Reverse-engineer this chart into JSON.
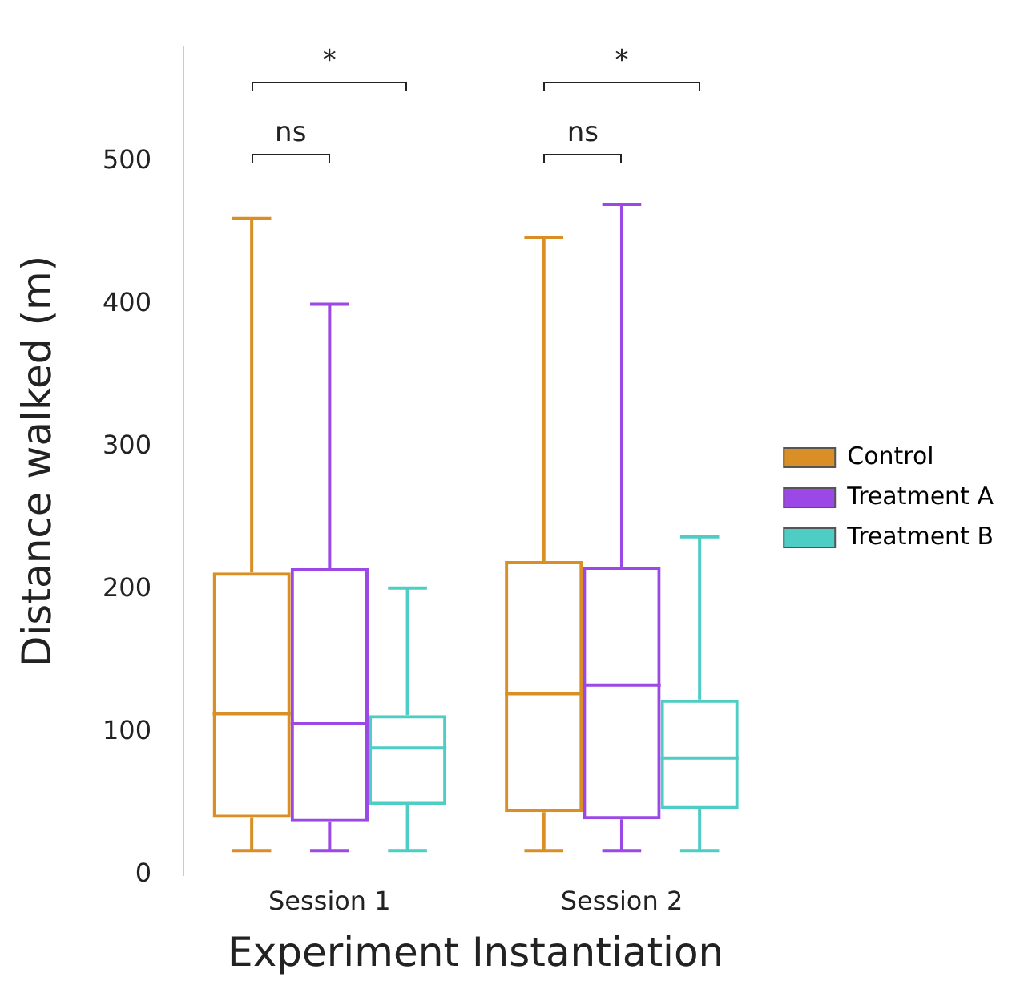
{
  "chart_data": {
    "type": "box",
    "xlabel": "Experiment Instantiation",
    "ylabel": "Distance walked (m)",
    "categories": [
      "Session 1",
      "Session 2"
    ],
    "ylim": [
      0,
      580
    ],
    "yticks": [
      0,
      100,
      200,
      300,
      400,
      500
    ],
    "grid": false,
    "legend": "right",
    "annotations": [
      "ns",
      "*",
      "ns",
      "*"
    ],
    "series": [
      {
        "name": "Control",
        "color": "#d98f26",
        "boxes": [
          {
            "low": 17,
            "q1": 40,
            "median": 113,
            "q3": 212,
            "high": 460
          },
          {
            "low": 17,
            "q1": 44,
            "median": 127,
            "q3": 220,
            "high": 447
          }
        ]
      },
      {
        "name": "Treatment A",
        "color": "#9b48e6",
        "boxes": [
          {
            "low": 17,
            "q1": 37,
            "median": 106,
            "q3": 215,
            "high": 400
          },
          {
            "low": 17,
            "q1": 39,
            "median": 133,
            "q3": 216,
            "high": 470
          }
        ]
      },
      {
        "name": "Treatment B",
        "color": "#4ecdc4",
        "boxes": [
          {
            "low": 17,
            "q1": 49,
            "median": 89,
            "q3": 112,
            "high": 201
          },
          {
            "low": 17,
            "q1": 46,
            "median": 82,
            "q3": 123,
            "high": 237
          }
        ]
      }
    ]
  }
}
